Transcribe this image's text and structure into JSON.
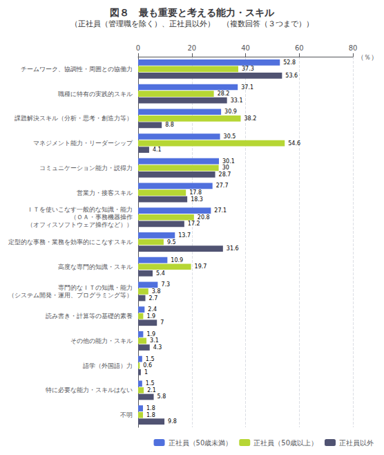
{
  "chart_data": {
    "type": "bar",
    "orientation": "horizontal",
    "title": "図８　最も重要と考える能力・スキル",
    "subtitle": "（正社員（管理職を除く）、正社員以外）　（複数回答（３つまで））",
    "x_label": "（％）",
    "categories": [
      "チームワーク、協調性・周囲との協働力",
      "職種に特有の実践的スキル",
      "課題解決スキル（分析・思考・創造力等）",
      "マネジメント能力・リーダーシップ",
      "コミュニケーション能力・説得力",
      "営業力・接客スキル",
      "ＩＴを使いこなす一般的な知識・能力\n（ＯＡ・事務機器操作\n（オフィスソフトウェア操作など））",
      "定型的な事務・業務を効率的にこなすスキル",
      "高度な専門的知識・スキル",
      "専門的なＩＴの知識・能力\n（システム開発・運用、プログラミング等）",
      "読み書き・計算等の基礎的素養",
      "その他の能力・スキル",
      "語学（外国語）力",
      "特に必要な能力・スキルはない",
      "不明"
    ],
    "series": [
      {
        "name": "正社員（50歳未満）",
        "values": [
          52.8,
          37.1,
          30.9,
          30.5,
          30.1,
          27.7,
          27.1,
          13.7,
          10.9,
          7.3,
          2.4,
          1.9,
          1.5,
          1.5,
          1.8
        ]
      },
      {
        "name": "正社員（50歳以上）",
        "values": [
          37.3,
          28.2,
          38.2,
          54.6,
          30.0,
          17.8,
          20.8,
          9.5,
          19.7,
          3.8,
          1.9,
          3.1,
          0.6,
          2.1,
          1.8
        ]
      },
      {
        "name": "正社員以外",
        "values": [
          53.6,
          33.1,
          8.8,
          4.1,
          28.7,
          18.3,
          17.2,
          31.6,
          5.4,
          2.7,
          7.0,
          4.3,
          1.0,
          5.8,
          9.8
        ]
      }
    ],
    "xlim": [
      0,
      80
    ],
    "xticks": [
      0,
      20,
      40,
      60,
      80
    ],
    "grid": true,
    "legend": "lower right",
    "data_labels": true
  }
}
